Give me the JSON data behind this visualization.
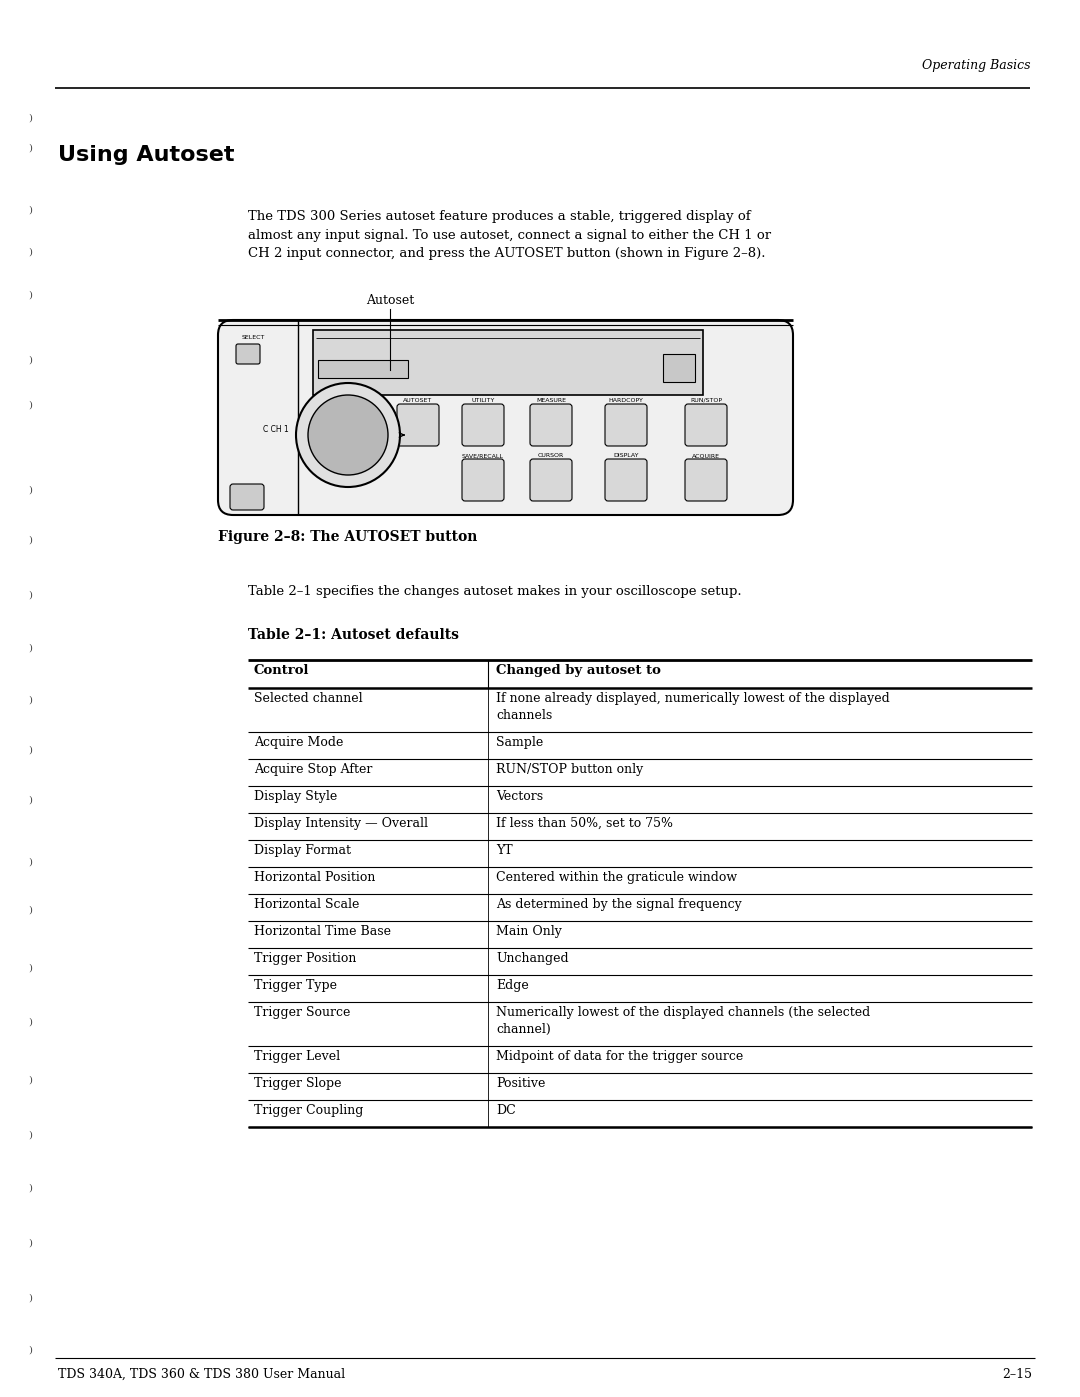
{
  "page_title": "Operating Basics",
  "section_title": "Using Autoset",
  "body_text": "The TDS 300 Series autoset feature produces a stable, triggered display of\nalmost any input signal. To use autoset, connect a signal to either the CH 1 or\nCH 2 input connector, and press the AUTOSET button (shown in Figure 2–8).",
  "figure_caption": "Figure 2–8: The AUTOSET button",
  "figure_label": "Autoset",
  "table_intro": "Table 2–1 specifies the changes autoset makes in your oscilloscope setup.",
  "table_title": "Table 2–1: Autoset defaults",
  "table_headers": [
    "Control",
    "Changed by autoset to"
  ],
  "table_rows": [
    [
      "Selected channel",
      "If none already displayed, numerically lowest of the displayed\nchannels"
    ],
    [
      "Acquire Mode",
      "Sample"
    ],
    [
      "Acquire Stop After",
      "RUN/STOP button only"
    ],
    [
      "Display Style",
      "Vectors"
    ],
    [
      "Display Intensity — Overall",
      "If less than 50%, set to 75%"
    ],
    [
      "Display Format",
      "YT"
    ],
    [
      "Horizontal Position",
      "Centered within the graticule window"
    ],
    [
      "Horizontal Scale",
      "As determined by the signal frequency"
    ],
    [
      "Horizontal Time Base",
      "Main Only"
    ],
    [
      "Trigger Position",
      "Unchanged"
    ],
    [
      "Trigger Type",
      "Edge"
    ],
    [
      "Trigger Source",
      "Numerically lowest of the displayed channels (the selected\nchannel)"
    ],
    [
      "Trigger Level",
      "Midpoint of data for the trigger source"
    ],
    [
      "Trigger Slope",
      "Positive"
    ],
    [
      "Trigger Coupling",
      "DC"
    ]
  ],
  "footer_left": "TDS 340A, TDS 360 & TDS 380 User Manual",
  "footer_right": "2–15",
  "bg_color": "#ffffff",
  "text_color": "#000000"
}
